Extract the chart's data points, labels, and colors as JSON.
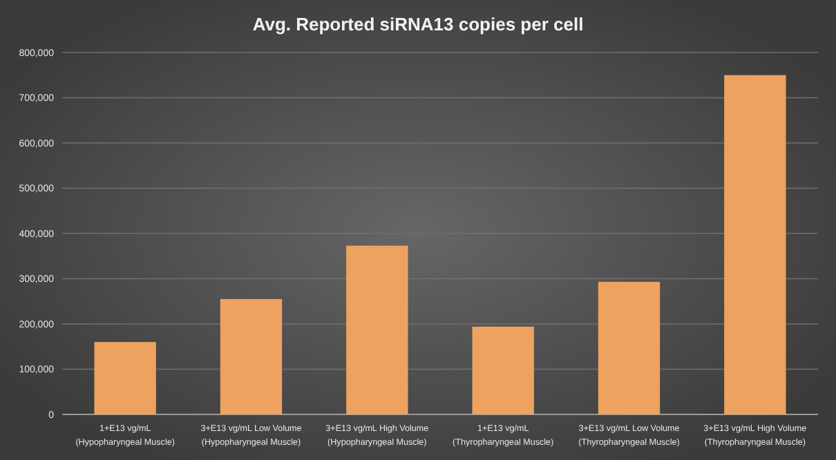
{
  "chart_data": {
    "type": "bar",
    "title": "Avg. Reported siRNA13 copies per cell",
    "categories": [
      "1+E13 vg/mL (Hypopharyngeal Muscle)",
      "3+E13 vg/mL Low Volume (Hypopharyngeal Muscle)",
      "3+E13 vg/mL High Volume (Hypopharyngeal Muscle)",
      "1+E13 vg/mL (Thyropharyngeal Muscle)",
      "3+E13 vg/mL Low Volume (Thyropharyngeal Muscle)",
      "3+E13 vg/mL High Volume (Thyropharyngeal Muscle)"
    ],
    "values": [
      160000,
      255000,
      373000,
      194000,
      293000,
      750000
    ],
    "color": "#eda35f",
    "ylim": [
      0,
      800000
    ],
    "yticks": [
      {
        "value": 0,
        "label": "0"
      },
      {
        "value": 100000,
        "label": "100,000"
      },
      {
        "value": 200000,
        "label": "200,000"
      },
      {
        "value": 300000,
        "label": "300,000"
      },
      {
        "value": 400000,
        "label": "400,000"
      },
      {
        "value": 500000,
        "label": "500,000"
      },
      {
        "value": 600000,
        "label": "600,000"
      },
      {
        "value": 700000,
        "label": "700,000"
      },
      {
        "value": 800000,
        "label": "800,000"
      }
    ],
    "grid": "y"
  }
}
